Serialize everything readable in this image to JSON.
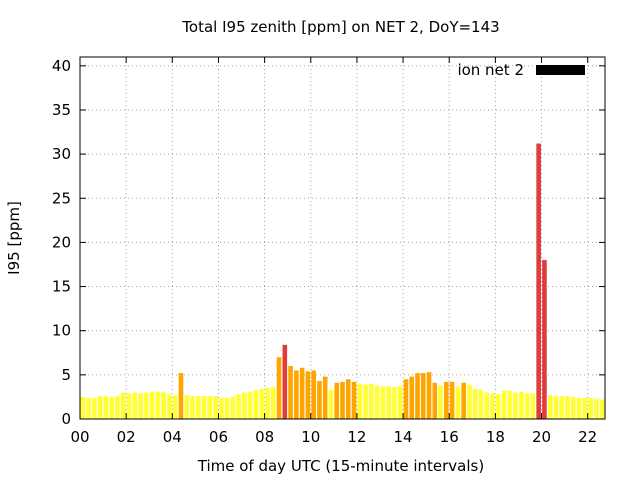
{
  "chart_data": {
    "type": "bar",
    "title": "Total I95 zenith [ppm] on NET 2, DoY=143",
    "xlabel": "Time of day UTC (15-minute intervals)",
    "ylabel": "I95 [ppm]",
    "xlim": [
      0,
      22.75
    ],
    "ylim": [
      0,
      41
    ],
    "xticks": [
      0,
      2,
      4,
      6,
      8,
      10,
      12,
      14,
      16,
      18,
      20,
      22
    ],
    "xtick_labels": [
      "00",
      "02",
      "04",
      "06",
      "08",
      "10",
      "12",
      "14",
      "16",
      "18",
      "20",
      "22"
    ],
    "yticks": [
      0,
      5,
      10,
      15,
      20,
      25,
      30,
      35,
      40
    ],
    "ytick_labels": [
      "0",
      "5",
      "10",
      "15",
      "20",
      "25",
      "30",
      "35",
      "40"
    ],
    "grid": true,
    "legend_position": "top-right",
    "series": [
      {
        "name": "ion net 2",
        "legend_color": "#000000",
        "interval_hours": 0.25,
        "x": [
          0.0,
          0.25,
          0.5,
          0.75,
          1.0,
          1.25,
          1.5,
          1.75,
          2.0,
          2.25,
          2.5,
          2.75,
          3.0,
          3.25,
          3.5,
          3.75,
          4.0,
          4.25,
          4.5,
          4.75,
          5.0,
          5.25,
          5.5,
          5.75,
          6.0,
          6.25,
          6.5,
          6.75,
          7.0,
          7.25,
          7.5,
          7.75,
          8.0,
          8.25,
          8.5,
          8.75,
          9.0,
          9.25,
          9.5,
          9.75,
          10.0,
          10.25,
          10.5,
          10.75,
          11.0,
          11.25,
          11.5,
          11.75,
          12.0,
          12.25,
          12.5,
          12.75,
          13.0,
          13.25,
          13.5,
          13.75,
          14.0,
          14.25,
          14.5,
          14.75,
          15.0,
          15.25,
          15.5,
          15.75,
          16.0,
          16.25,
          16.5,
          16.75,
          17.0,
          17.25,
          17.5,
          17.75,
          18.0,
          18.25,
          18.5,
          18.75,
          19.0,
          19.25,
          19.5,
          19.75,
          20.0,
          20.25,
          20.5,
          20.75,
          21.0,
          21.25,
          21.5,
          21.75,
          22.0,
          22.25,
          22.5
        ],
        "values": [
          2.5,
          2.4,
          2.4,
          2.6,
          2.6,
          2.5,
          2.6,
          3.0,
          2.9,
          3.0,
          2.9,
          3.0,
          3.1,
          3.1,
          3.0,
          2.8,
          2.7,
          5.2,
          2.7,
          2.6,
          2.6,
          2.6,
          2.6,
          2.6,
          2.4,
          2.4,
          2.5,
          2.8,
          3.0,
          3.1,
          3.3,
          3.4,
          3.5,
          3.6,
          7.0,
          8.4,
          6.0,
          5.5,
          5.8,
          5.4,
          5.5,
          4.3,
          4.8,
          3.3,
          4.1,
          4.2,
          4.5,
          4.2,
          4.0,
          3.9,
          4.0,
          3.8,
          3.7,
          3.7,
          3.6,
          3.7,
          4.5,
          4.8,
          5.2,
          5.2,
          5.3,
          4.1,
          3.8,
          4.2,
          4.2,
          3.7,
          4.1,
          3.9,
          3.4,
          3.3,
          3.0,
          2.9,
          2.8,
          3.2,
          3.2,
          3.0,
          3.1,
          2.9,
          2.9,
          31.2,
          18.0,
          2.7,
          2.6,
          2.6,
          2.6,
          2.5,
          2.4,
          2.4,
          2.4,
          2.3,
          2.2
        ],
        "colors": [
          "#ffff33",
          "#ffff33",
          "#ffff33",
          "#ffff33",
          "#ffff33",
          "#ffff33",
          "#ffff33",
          "#ffff33",
          "#ffff33",
          "#ffff33",
          "#ffff33",
          "#ffff33",
          "#ffff33",
          "#ffff33",
          "#ffff33",
          "#ffff33",
          "#ffff33",
          "#ffa500",
          "#ffff33",
          "#ffff33",
          "#ffff33",
          "#ffff33",
          "#ffff33",
          "#ffff33",
          "#ffff33",
          "#ffff33",
          "#ffff33",
          "#ffff33",
          "#ffff33",
          "#ffff33",
          "#ffff33",
          "#ffff33",
          "#ffff33",
          "#ffff33",
          "#ffa500",
          "#e03c3c",
          "#ffa500",
          "#ffa500",
          "#ffa500",
          "#ffa500",
          "#ffa500",
          "#ffa500",
          "#ffa500",
          "#ffff33",
          "#ffa500",
          "#ffa500",
          "#ffa500",
          "#ffa500",
          "#ffff33",
          "#ffff33",
          "#ffff33",
          "#ffff33",
          "#ffff33",
          "#ffff33",
          "#ffff33",
          "#ffff33",
          "#ffa500",
          "#ffa500",
          "#ffa500",
          "#ffa500",
          "#ffa500",
          "#ffa500",
          "#ffff33",
          "#ffa500",
          "#ffa500",
          "#ffff33",
          "#ffa500",
          "#ffff33",
          "#ffff33",
          "#ffff33",
          "#ffff33",
          "#ffff33",
          "#ffff33",
          "#ffff33",
          "#ffff33",
          "#ffff33",
          "#ffff33",
          "#ffff33",
          "#ffff33",
          "#e03c3c",
          "#e03c3c",
          "#ffff33",
          "#ffff33",
          "#ffff33",
          "#ffff33",
          "#ffff33",
          "#ffff33",
          "#ffff33",
          "#ffff33",
          "#ffff33",
          "#ffff33"
        ]
      }
    ]
  }
}
